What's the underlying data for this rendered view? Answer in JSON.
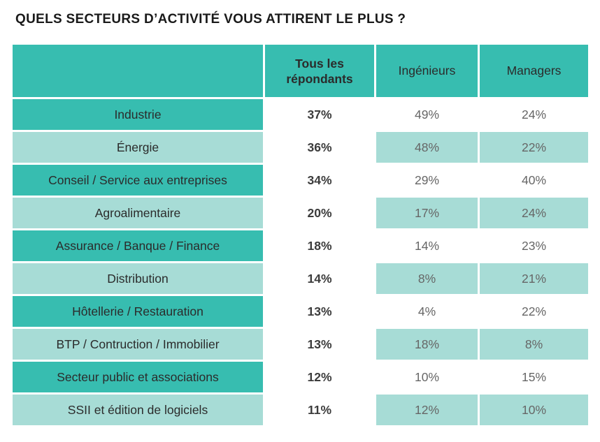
{
  "title": "QUELS SECTEURS D’ACTIVITÉ VOUS ATTIRENT LE PLUS ?",
  "colors": {
    "header_teal": "#37bdb0",
    "light_teal": "#a7dcd6",
    "white": "#ffffff"
  },
  "table": {
    "headers": [
      "",
      "Tous les répondants",
      "Ingénieurs",
      "Managers"
    ],
    "rows": [
      {
        "sector": "Industrie",
        "all": "37%",
        "engineers": "49%",
        "managers": "24%"
      },
      {
        "sector": "Énergie",
        "all": "36%",
        "engineers": "48%",
        "managers": "22%"
      },
      {
        "sector": "Conseil / Service aux entreprises",
        "all": "34%",
        "engineers": "29%",
        "managers": "40%"
      },
      {
        "sector": "Agroalimentaire",
        "all": "20%",
        "engineers": "17%",
        "managers": "24%"
      },
      {
        "sector": "Assurance / Banque / Finance",
        "all": "18%",
        "engineers": "14%",
        "managers": "23%"
      },
      {
        "sector": "Distribution",
        "all": "14%",
        "engineers": "8%",
        "managers": "21%"
      },
      {
        "sector": "Hôtellerie / Restauration",
        "all": "13%",
        "engineers": "4%",
        "managers": "22%"
      },
      {
        "sector": "BTP / Contruction / Immobilier",
        "all": "13%",
        "engineers": "18%",
        "managers": "8%"
      },
      {
        "sector": "Secteur public et associations",
        "all": "12%",
        "engineers": "10%",
        "managers": "15%"
      },
      {
        "sector": "SSII et édition de logiciels",
        "all": "11%",
        "engineers": "12%",
        "managers": "10%"
      }
    ]
  }
}
